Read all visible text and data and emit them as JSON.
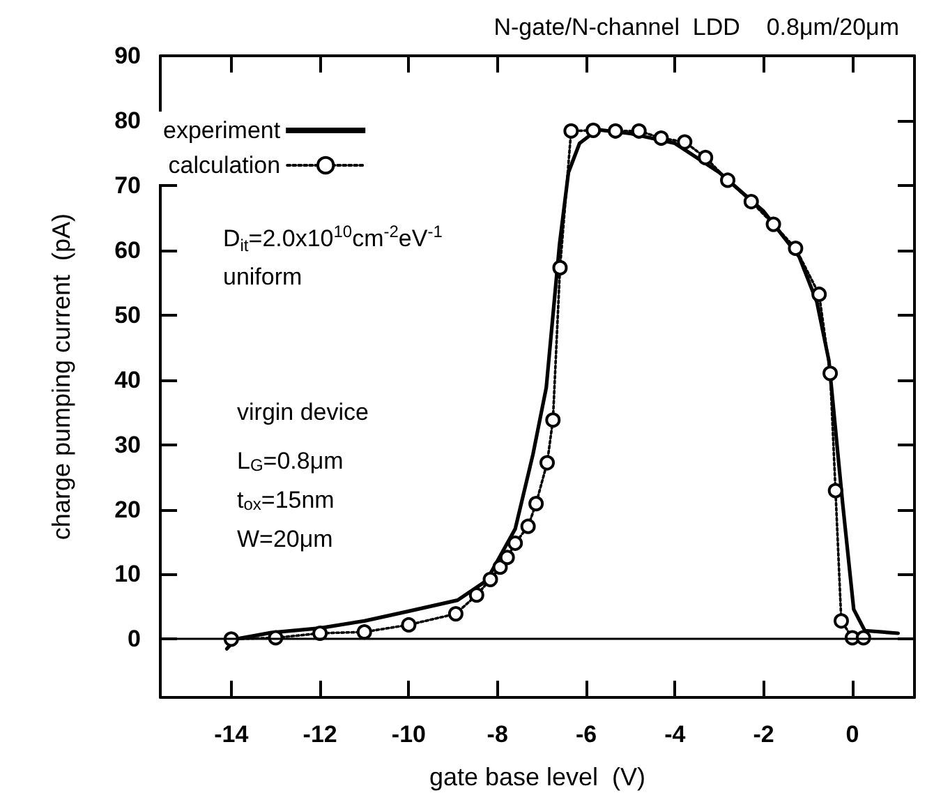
{
  "chart_data": {
    "type": "line",
    "title": "N-gate/N-channel  LDD    0.8μm/20μm",
    "xlabel": "gate base level  (V)",
    "ylabel": "charge pumping current  (pA)",
    "xlim": [
      -15.6,
      1.4
    ],
    "ylim": [
      -9,
      90
    ],
    "xticks": [
      -14,
      -12,
      -10,
      -8,
      -6,
      -4,
      -2,
      0
    ],
    "yticks": [
      0,
      10,
      20,
      30,
      40,
      50,
      60,
      70,
      80,
      90
    ],
    "grid": false,
    "legend": "top left",
    "ref_lines": [
      {
        "axis": "y",
        "value": 0,
        "color": "#000000",
        "line_style": "solid"
      }
    ],
    "annotations": [
      "D$_{it}$=2.0x10$^{10}$cm$^{-2}$eV$^{-1}$",
      "uniform",
      "virgin device",
      "L$_{G}$=0.8μm",
      "t$_{ox}$=15nm",
      "W=20μm"
    ],
    "series": [
      {
        "name": "experiment",
        "color": "#000000",
        "marker": "none",
        "line_style": "solid",
        "x": [
          -14.1,
          -13.9,
          -13.1,
          -12,
          -11,
          -10,
          -8.9,
          -8.25,
          -7.6,
          -7.2,
          -6.9,
          -6.6,
          -6.4,
          -6.15,
          -5.75,
          -5,
          -4,
          -3,
          -2,
          -1.2,
          -0.8,
          -0.53,
          -0.22,
          0.03,
          0.28,
          1.03
        ],
        "values": [
          -1.5,
          0,
          1,
          1.7,
          2.8,
          4.3,
          6,
          9,
          17,
          28.5,
          38.8,
          61,
          72,
          76.5,
          78.6,
          78,
          76.5,
          72,
          66,
          59,
          52,
          43,
          21,
          4.6,
          1.3,
          0.9
        ]
      },
      {
        "name": "calculation",
        "color": "#000000",
        "marker": "circle",
        "line_style": "dotted",
        "x": [
          -14,
          -13,
          -12,
          -11,
          -10,
          -8.94,
          -8.47,
          -8.16,
          -7.94,
          -7.78,
          -7.6,
          -7.31,
          -7.13,
          -6.88,
          -6.75,
          -6.59,
          -6.34,
          -5.84,
          -5.34,
          -4.81,
          -4.31,
          -3.78,
          -3.31,
          -2.81,
          -2.28,
          -1.78,
          -1.28,
          -0.75,
          -0.5,
          -0.38,
          -0.25,
          0,
          0.25
        ],
        "values": [
          0,
          0.2,
          0.9,
          1.1,
          2.2,
          3.9,
          6.8,
          9.2,
          11.1,
          12.6,
          14.8,
          17.4,
          20.9,
          27.2,
          33.8,
          57.3,
          78.4,
          78.5,
          78.4,
          78.4,
          77.3,
          76.7,
          74.3,
          70.8,
          67.5,
          64,
          60.3,
          53.2,
          41,
          22.9,
          2.8,
          0.2,
          0.2
        ]
      }
    ]
  }
}
